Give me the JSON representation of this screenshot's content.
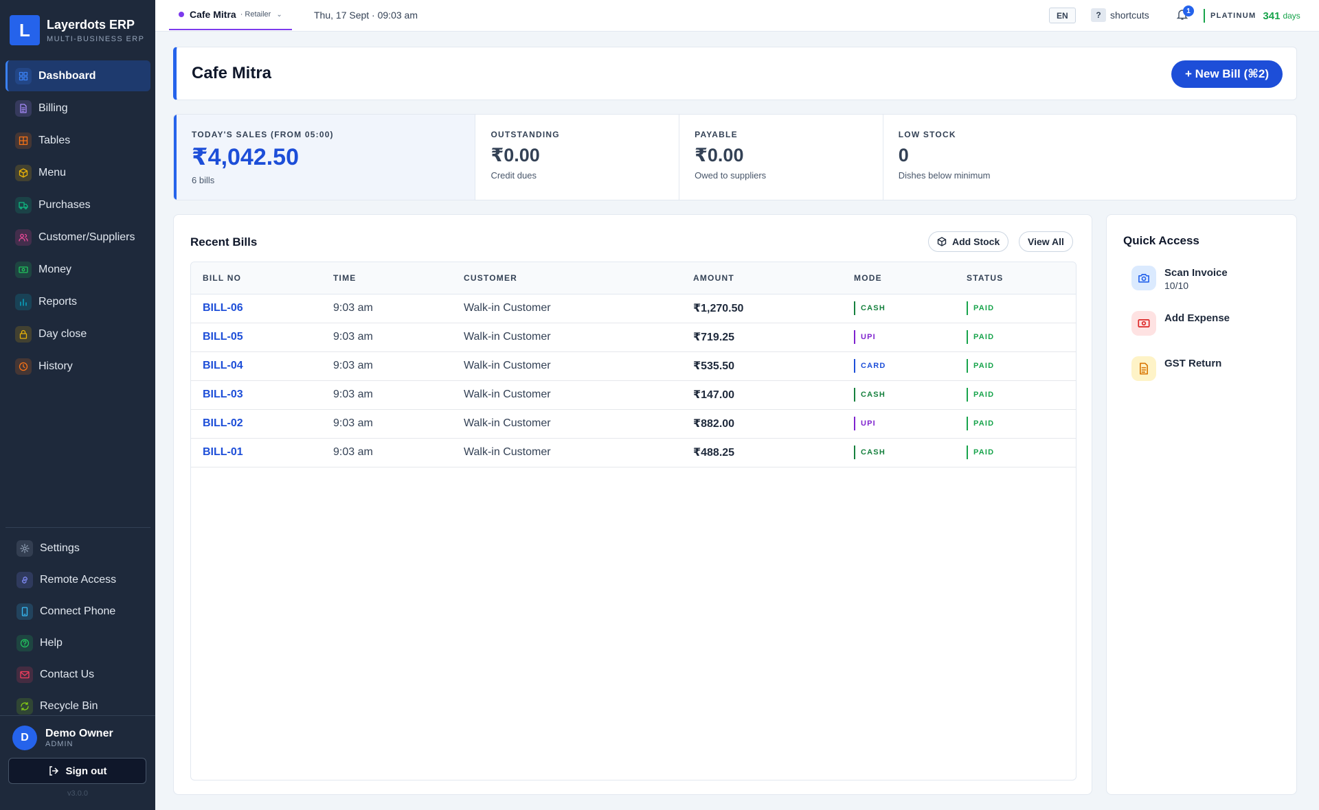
{
  "brand": {
    "logo_letter": "L",
    "title": "Layerdots ERP",
    "subtitle": "MULTI-BUSINESS ERP"
  },
  "nav": [
    {
      "label": "Dashboard",
      "icon": "grid-icon",
      "color": "#3b82f6",
      "active": true
    },
    {
      "label": "Billing",
      "icon": "document-icon",
      "color": "#a78bfa"
    },
    {
      "label": "Tables",
      "icon": "table-icon",
      "color": "#f97316"
    },
    {
      "label": "Menu",
      "icon": "box-icon",
      "color": "#eab308"
    },
    {
      "label": "Purchases",
      "icon": "truck-icon",
      "color": "#10b981"
    },
    {
      "label": "Customer/Suppliers",
      "icon": "users-icon",
      "color": "#ec4899"
    },
    {
      "label": "Money",
      "icon": "cash-icon",
      "color": "#22c55e"
    },
    {
      "label": "Reports",
      "icon": "bar-chart-icon",
      "color": "#06b6d4"
    },
    {
      "label": "Day close",
      "icon": "lock-icon",
      "color": "#eab308"
    },
    {
      "label": "History",
      "icon": "clock-icon",
      "color": "#f97316"
    }
  ],
  "nav_bottom": [
    {
      "label": "Settings",
      "icon": "gear-icon",
      "color": "#94a3b8"
    },
    {
      "label": "Remote Access",
      "icon": "link-icon",
      "color": "#818cf8"
    },
    {
      "label": "Connect Phone",
      "icon": "phone-icon",
      "color": "#38bdf8"
    },
    {
      "label": "Help",
      "icon": "help-icon",
      "color": "#22c55e"
    },
    {
      "label": "Contact Us",
      "icon": "mail-icon",
      "color": "#f43f5e"
    },
    {
      "label": "Recycle Bin",
      "icon": "recycle-icon",
      "color": "#84cc16"
    }
  ],
  "user": {
    "initial": "D",
    "name": "Demo Owner",
    "role": "ADMIN"
  },
  "signout_label": "Sign out",
  "version": "v3.0.0",
  "topbar": {
    "business": "Cafe Mitra",
    "business_type": "· Retailer",
    "datetime": "Thu, 17 Sept · 09:03 am",
    "lang": "EN",
    "shortcuts_key": "?",
    "shortcuts_label": "shortcuts",
    "notifications": "1",
    "plan": "PLATINUM",
    "plan_days": "341",
    "plan_unit": "days"
  },
  "page": {
    "title": "Cafe Mitra",
    "new_bill_label": "+ New Bill (⌘2)"
  },
  "stats": [
    {
      "label": "TODAY'S SALES (FROM 05:00)",
      "value": "₹4,042.50",
      "sub": "6 bills"
    },
    {
      "label": "OUTSTANDING",
      "value": "₹0.00",
      "sub": "Credit dues"
    },
    {
      "label": "PAYABLE",
      "value": "₹0.00",
      "sub": "Owed to suppliers"
    },
    {
      "label": "LOW STOCK",
      "value": "0",
      "sub": "Dishes below minimum"
    }
  ],
  "recent_bills": {
    "title": "Recent Bills",
    "add_stock_label": "Add Stock",
    "view_all_label": "View All",
    "columns": [
      "BILL NO",
      "TIME",
      "CUSTOMER",
      "AMOUNT",
      "MODE",
      "STATUS"
    ],
    "rows": [
      {
        "bill_no": "BILL-06",
        "time": "9:03 am",
        "customer": "Walk-in Customer",
        "amount": "₹1,270.50",
        "mode": "CASH",
        "status": "PAID"
      },
      {
        "bill_no": "BILL-05",
        "time": "9:03 am",
        "customer": "Walk-in Customer",
        "amount": "₹719.25",
        "mode": "UPI",
        "status": "PAID"
      },
      {
        "bill_no": "BILL-04",
        "time": "9:03 am",
        "customer": "Walk-in Customer",
        "amount": "₹535.50",
        "mode": "CARD",
        "status": "PAID"
      },
      {
        "bill_no": "BILL-03",
        "time": "9:03 am",
        "customer": "Walk-in Customer",
        "amount": "₹147.00",
        "mode": "CASH",
        "status": "PAID"
      },
      {
        "bill_no": "BILL-02",
        "time": "9:03 am",
        "customer": "Walk-in Customer",
        "amount": "₹882.00",
        "mode": "UPI",
        "status": "PAID"
      },
      {
        "bill_no": "BILL-01",
        "time": "9:03 am",
        "customer": "Walk-in Customer",
        "amount": "₹488.25",
        "mode": "CASH",
        "status": "PAID"
      }
    ],
    "mode_colors": {
      "CASH": "#15803d",
      "UPI": "#7e22ce",
      "CARD": "#1d4ed8"
    },
    "status_color": "#16a34a"
  },
  "quick_access": {
    "title": "Quick Access",
    "items": [
      {
        "label": "Scan Invoice",
        "sub": "10/10",
        "icon": "camera-icon",
        "bg": "#dbeafe",
        "color": "#2563eb"
      },
      {
        "label": "Add Expense",
        "sub": "",
        "icon": "cash-icon",
        "bg": "#fee2e2",
        "color": "#dc2626"
      },
      {
        "label": "GST Return",
        "sub": "",
        "icon": "document-icon",
        "bg": "#fef3c7",
        "color": "#d97706"
      }
    ]
  }
}
